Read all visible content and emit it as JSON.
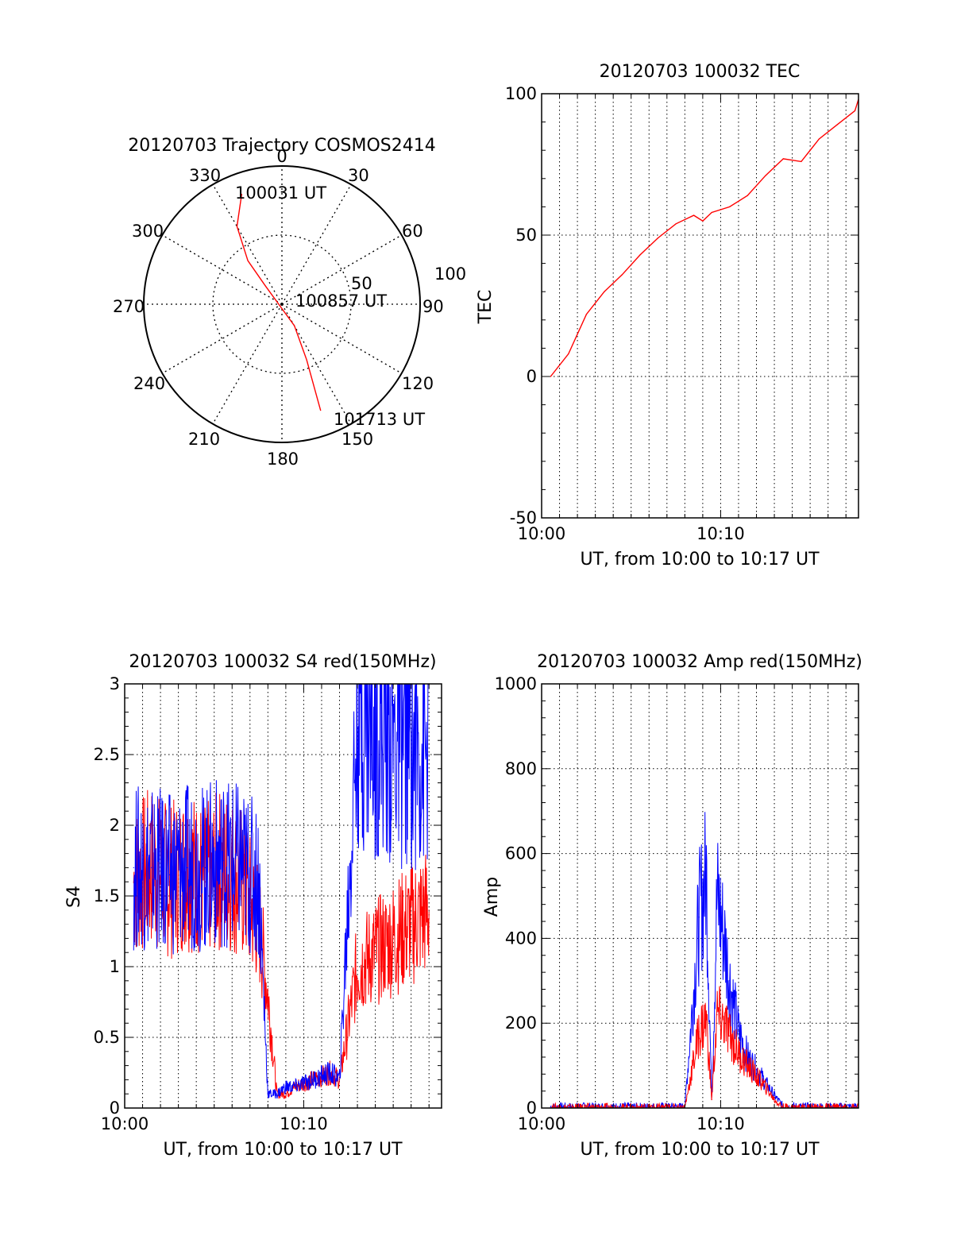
{
  "chart_data": [
    {
      "id": "trajectory",
      "type": "polar",
      "title": "20120703 Trajectory COSMOS2414",
      "angle_labels": [
        "0",
        "30",
        "60",
        "90",
        "120",
        "150",
        "180",
        "210",
        "240",
        "270",
        "300",
        "330"
      ],
      "radial_labels": [
        "50",
        "100"
      ],
      "radial_max": 100,
      "color": "#ff0000",
      "track": [
        {
          "azimuth": 340,
          "r": 85
        },
        {
          "azimuth": 330,
          "r": 65
        },
        {
          "azimuth": 322,
          "r": 40
        },
        {
          "azimuth": 318,
          "r": 18
        },
        {
          "azimuth": 150,
          "r": 18
        },
        {
          "azimuth": 156,
          "r": 44
        },
        {
          "azimuth": 160,
          "r": 82
        }
      ],
      "annotations": [
        {
          "text": "100031 UT",
          "azimuth": 351,
          "r": 82
        },
        {
          "text": "100857 UT",
          "azimuth": 69,
          "r": 23
        },
        {
          "text": "101713 UT",
          "azimuth": 145,
          "r": 98
        }
      ]
    },
    {
      "id": "tec",
      "type": "line",
      "title": "20120703 100032 TEC",
      "xlabel": "UT, from 10:00 to 10:17 UT",
      "ylabel": "TEC",
      "xlim": [
        0,
        17.7
      ],
      "ylim": [
        -50,
        100
      ],
      "xticks": [
        {
          "v": 0,
          "label": "10:00"
        },
        {
          "v": 10,
          "label": "10:10"
        }
      ],
      "yticks": [
        {
          "v": -50,
          "label": "-50"
        },
        {
          "v": 0,
          "label": "0"
        },
        {
          "v": 50,
          "label": "50"
        },
        {
          "v": 100,
          "label": "100"
        }
      ],
      "grid": true,
      "series": [
        {
          "color": "#ff0000",
          "x": [
            0.5,
            1.5,
            2.5,
            3.5,
            4.5,
            5.5,
            6.5,
            7.5,
            8.5,
            9.0,
            9.5,
            10.5,
            11.5,
            12.5,
            13.5,
            14.5,
            15.5,
            16.5,
            17.5,
            17.7
          ],
          "y": [
            0,
            8,
            22,
            30,
            36,
            43,
            49,
            54,
            57,
            55,
            58,
            60,
            64,
            71,
            77,
            76,
            84,
            89,
            94,
            98
          ]
        }
      ]
    },
    {
      "id": "s4",
      "type": "line",
      "title": "20120703 100032 S4 red(150MHz)",
      "xlabel": "UT, from 10:00 to 10:17 UT",
      "ylabel": "S4",
      "xlim": [
        0,
        17.7
      ],
      "ylim": [
        0,
        3
      ],
      "xticks": [
        {
          "v": 0,
          "label": "10:00"
        },
        {
          "v": 10,
          "label": "10:10"
        }
      ],
      "yticks": [
        {
          "v": 0,
          "label": "0"
        },
        {
          "v": 0.5,
          "label": "0.5"
        },
        {
          "v": 1,
          "label": "1"
        },
        {
          "v": 1.5,
          "label": "1.5"
        },
        {
          "v": 2,
          "label": "2"
        },
        {
          "v": 2.5,
          "label": "2.5"
        },
        {
          "v": 3,
          "label": "3"
        }
      ],
      "grid": true,
      "series": [
        {
          "color": "#ff0000",
          "x": [
            0.5,
            1.5,
            2.5,
            3.5,
            4.5,
            5.5,
            6.5,
            7.5,
            8.0,
            8.5,
            9.0,
            9.5,
            10.5,
            11.5,
            12.0,
            13.0,
            14.0,
            15.0,
            16.0,
            17.0
          ],
          "y": [
            1.6,
            1.7,
            1.6,
            1.7,
            1.6,
            1.7,
            1.6,
            1.3,
            0.8,
            0.1,
            0.1,
            0.15,
            0.2,
            0.25,
            0.2,
            1.0,
            1.1,
            1.2,
            1.3,
            1.4
          ]
        },
        {
          "color": "#0000ff",
          "x": [
            0.5,
            1.5,
            2.5,
            3.5,
            4.5,
            5.5,
            6.5,
            7.5,
            8.0,
            8.5,
            9.0,
            9.5,
            10.5,
            11.5,
            12.0,
            13.0,
            14.0,
            15.0,
            16.0,
            17.0
          ],
          "y": [
            1.7,
            1.7,
            1.65,
            1.7,
            1.7,
            1.75,
            1.7,
            1.6,
            0.1,
            0.1,
            0.15,
            0.15,
            0.2,
            0.25,
            0.2,
            2.8,
            2.7,
            2.6,
            2.6,
            2.5
          ]
        }
      ]
    },
    {
      "id": "amp",
      "type": "line",
      "title": "20120703 100032 Amp red(150MHz)",
      "xlabel": "UT, from 10:00 to 10:17 UT",
      "ylabel": "Amp",
      "xlim": [
        0,
        17.7
      ],
      "ylim": [
        0,
        1000
      ],
      "xticks": [
        {
          "v": 0,
          "label": "10:00"
        },
        {
          "v": 10,
          "label": "10:10"
        }
      ],
      "yticks": [
        {
          "v": 0,
          "label": "0"
        },
        {
          "v": 200,
          "label": "200"
        },
        {
          "v": 400,
          "label": "400"
        },
        {
          "v": 600,
          "label": "600"
        },
        {
          "v": 800,
          "label": "800"
        },
        {
          "v": 1000,
          "label": "1000"
        }
      ],
      "grid": true,
      "series": [
        {
          "color": "#0000ff",
          "x": [
            0.5,
            2,
            4,
            6,
            8,
            8.8,
            9.2,
            9.5,
            9.8,
            10.2,
            10.5,
            11,
            11.5,
            12,
            12.5,
            13,
            13.5,
            14,
            15,
            16,
            17.7
          ],
          "y": [
            3,
            3,
            3,
            3,
            3,
            450,
            550,
            20,
            500,
            400,
            300,
            180,
            120,
            90,
            60,
            30,
            3,
            3,
            3,
            3,
            3
          ]
        },
        {
          "color": "#ff0000",
          "x": [
            0.5,
            2,
            4,
            6,
            8,
            8.8,
            9.2,
            9.5,
            9.8,
            10.2,
            10.5,
            11,
            11.5,
            12,
            12.5,
            13,
            13.5,
            14,
            15,
            16,
            17.7
          ],
          "y": [
            1,
            1,
            1,
            1,
            1,
            180,
            210,
            20,
            220,
            200,
            170,
            130,
            100,
            75,
            50,
            20,
            1,
            1,
            1,
            1,
            1
          ]
        }
      ]
    }
  ]
}
